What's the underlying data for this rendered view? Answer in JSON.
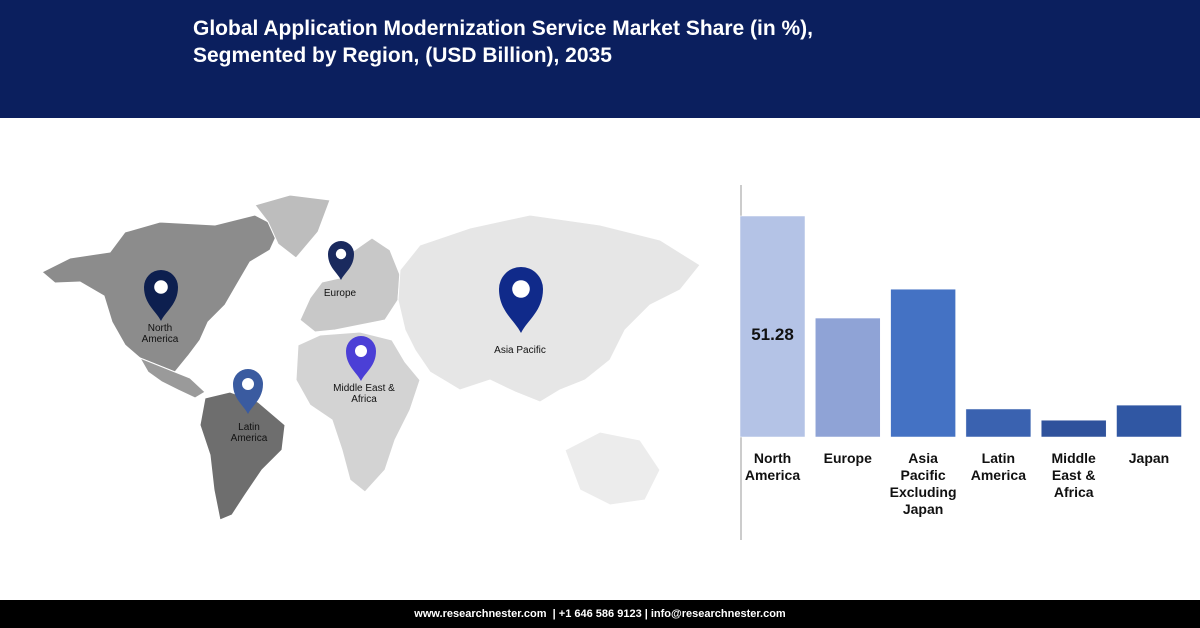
{
  "header": {
    "title_lines": [
      "Global Application Modernization Service Market Share (in %),",
      "Segmented by Region, (USD Billion), 2035"
    ]
  },
  "map": {
    "pins": [
      "North America",
      "Europe",
      "Asia Pacific",
      "Middle East & Africa",
      "Latin America"
    ]
  },
  "chart_data": {
    "type": "bar",
    "categories": [
      "North America",
      "Europe",
      "Asia Pacific Excluding Japan",
      "Latin America",
      "Middle East & Africa",
      "Japan"
    ],
    "values": [
      51.28,
      27.6,
      34.3,
      6.5,
      3.9,
      7.4
    ],
    "value_labels": [
      "51.28",
      null,
      null,
      null,
      null,
      null
    ],
    "colors": [
      "#b4c3e6",
      "#8fa3d6",
      "#4472c4",
      "#3a62b0",
      "#2f529c",
      "#3057a3"
    ]
  },
  "footer": {
    "text": "www.researchnester.com  | +1 646 586 9123 | info@researchnester.com"
  }
}
